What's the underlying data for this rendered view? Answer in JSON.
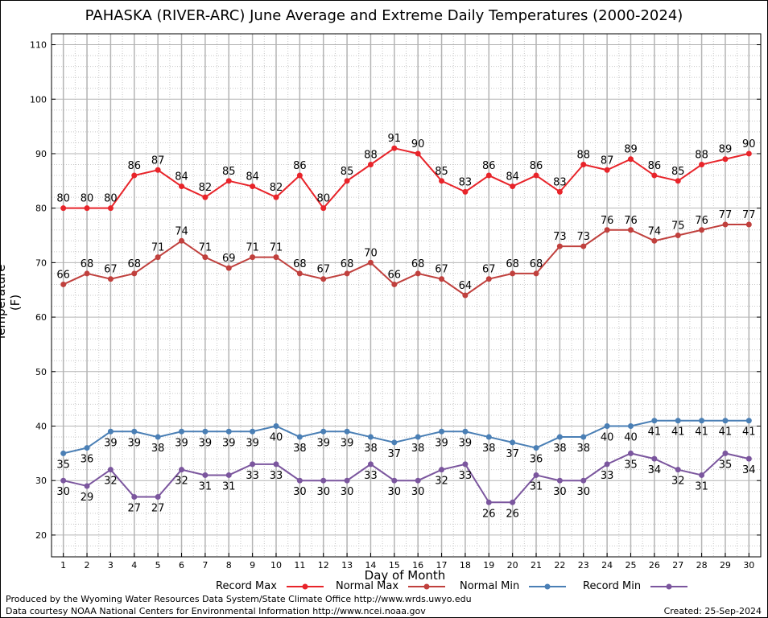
{
  "title": "PAHASKA (RIVER-ARC) June Average and Extreme Daily Temperatures (2000-2024)",
  "footer": {
    "produced_by": "Produced by the Wyoming Water Resources Data System/State Climate Office http://www.wrds.uwyo.edu",
    "data_courtesy": "Data courtesy NOAA National Centers for Environmental Information http://www.ncei.noaa.gov",
    "created": "Created: 25-Sep-2024"
  },
  "chart_data": {
    "type": "line",
    "title": "PAHASKA (RIVER-ARC) June Average and Extreme Daily Temperatures (2000-2024)",
    "xlabel": "Day of Month",
    "ylabel": "Temperature (F)",
    "x": [
      1,
      2,
      3,
      4,
      5,
      6,
      7,
      8,
      9,
      10,
      11,
      12,
      13,
      14,
      15,
      16,
      17,
      18,
      19,
      20,
      21,
      22,
      23,
      24,
      25,
      26,
      27,
      28,
      29,
      30
    ],
    "xlim": [
      0.5,
      30.5
    ],
    "ylim": [
      16,
      112
    ],
    "y_ticks": [
      20,
      30,
      40,
      50,
      60,
      70,
      80,
      90,
      100,
      110
    ],
    "grid": true,
    "legend_position": "bottom",
    "series": [
      {
        "name": "Record Max",
        "color": "#e8242a",
        "label_position": "above",
        "values": [
          80,
          80,
          80,
          86,
          87,
          84,
          82,
          85,
          84,
          82,
          86,
          80,
          85,
          88,
          91,
          90,
          85,
          83,
          86,
          84,
          86,
          83,
          88,
          87,
          89,
          86,
          85,
          88,
          89,
          90
        ]
      },
      {
        "name": "Normal Max",
        "color": "#c0403d",
        "label_position": "above",
        "values": [
          66,
          68,
          67,
          68,
          71,
          74,
          71,
          69,
          71,
          71,
          68,
          67,
          68,
          70,
          66,
          68,
          67,
          64,
          67,
          68,
          68,
          73,
          73,
          76,
          76,
          74,
          75,
          76,
          77,
          77
        ]
      },
      {
        "name": "Normal Min",
        "color": "#4a7fb5",
        "label_position": "below",
        "values": [
          35,
          36,
          39,
          39,
          38,
          39,
          39,
          39,
          39,
          40,
          38,
          39,
          39,
          38,
          37,
          38,
          39,
          39,
          38,
          37,
          36,
          38,
          38,
          40,
          40,
          41,
          41,
          41,
          41,
          41
        ]
      },
      {
        "name": "Record Min",
        "color": "#7b569e",
        "label_position": "below",
        "values": [
          30,
          29,
          32,
          27,
          27,
          32,
          31,
          31,
          33,
          33,
          30,
          30,
          30,
          33,
          30,
          30,
          32,
          33,
          26,
          26,
          31,
          30,
          30,
          33,
          35,
          34,
          32,
          31,
          35,
          34
        ]
      }
    ]
  }
}
